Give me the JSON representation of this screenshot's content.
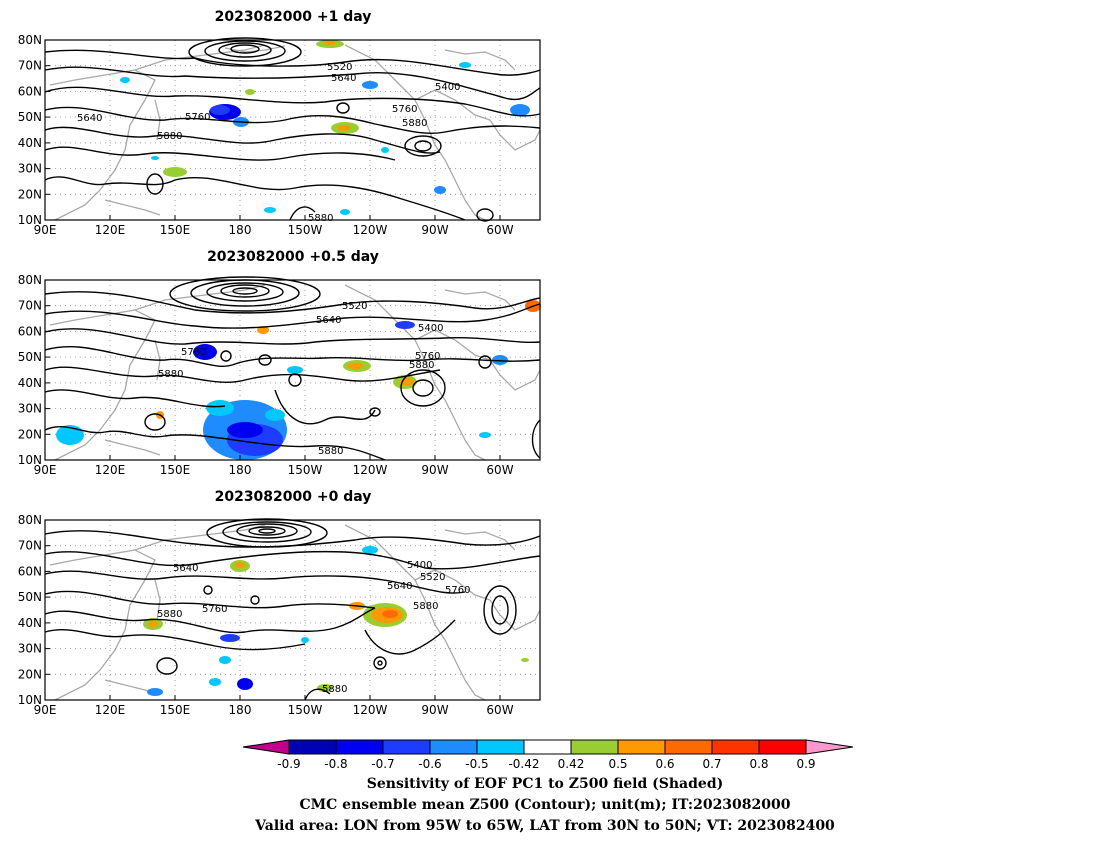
{
  "panels": [
    {
      "title": "2023082000  +1 day",
      "contour_labels": [
        "5400",
        "5520",
        "5640",
        "5640",
        "5760",
        "5760",
        "5880",
        "5880",
        "5880"
      ]
    },
    {
      "title": "2023082000  +0.5 day",
      "contour_labels": [
        "5400",
        "5520",
        "5640",
        "5760",
        "5760",
        "5880",
        "5880",
        "5880"
      ]
    },
    {
      "title": "2023082000  +0 day",
      "contour_labels": [
        "5400",
        "5520",
        "5640",
        "5640",
        "5760",
        "5760",
        "5880",
        "5880",
        "5880"
      ]
    }
  ],
  "axes": {
    "lat_labels": [
      "10N",
      "20N",
      "30N",
      "40N",
      "50N",
      "60N",
      "70N",
      "80N"
    ],
    "lon_labels": [
      "90E",
      "120E",
      "150E",
      "180",
      "150W",
      "120W",
      "90W",
      "60W"
    ]
  },
  "colorbar": {
    "labels": [
      "-0.9",
      "-0.8",
      "-0.7",
      "-0.6",
      "-0.5",
      "-0.42",
      "0.42",
      "0.5",
      "0.6",
      "0.7",
      "0.8",
      "0.9"
    ],
    "colors": [
      "#c0008c",
      "#0000b4",
      "#0000f0",
      "#1e3cff",
      "#1e8cff",
      "#00c8ff",
      "#ffffff",
      "#9acd32",
      "#ff9900",
      "#ff6a00",
      "#ff3300",
      "#ff0000",
      "#ff99cc"
    ]
  },
  "caption": {
    "line1": "Sensitivity of EOF PC1 to Z500 field (Shaded)",
    "line2": "CMC ensemble mean Z500 (Contour); unit(m); IT:2023082000",
    "line3": "Valid area: LON from 95W to 65W, LAT from 30N to 50N; VT: 2023082400"
  }
}
